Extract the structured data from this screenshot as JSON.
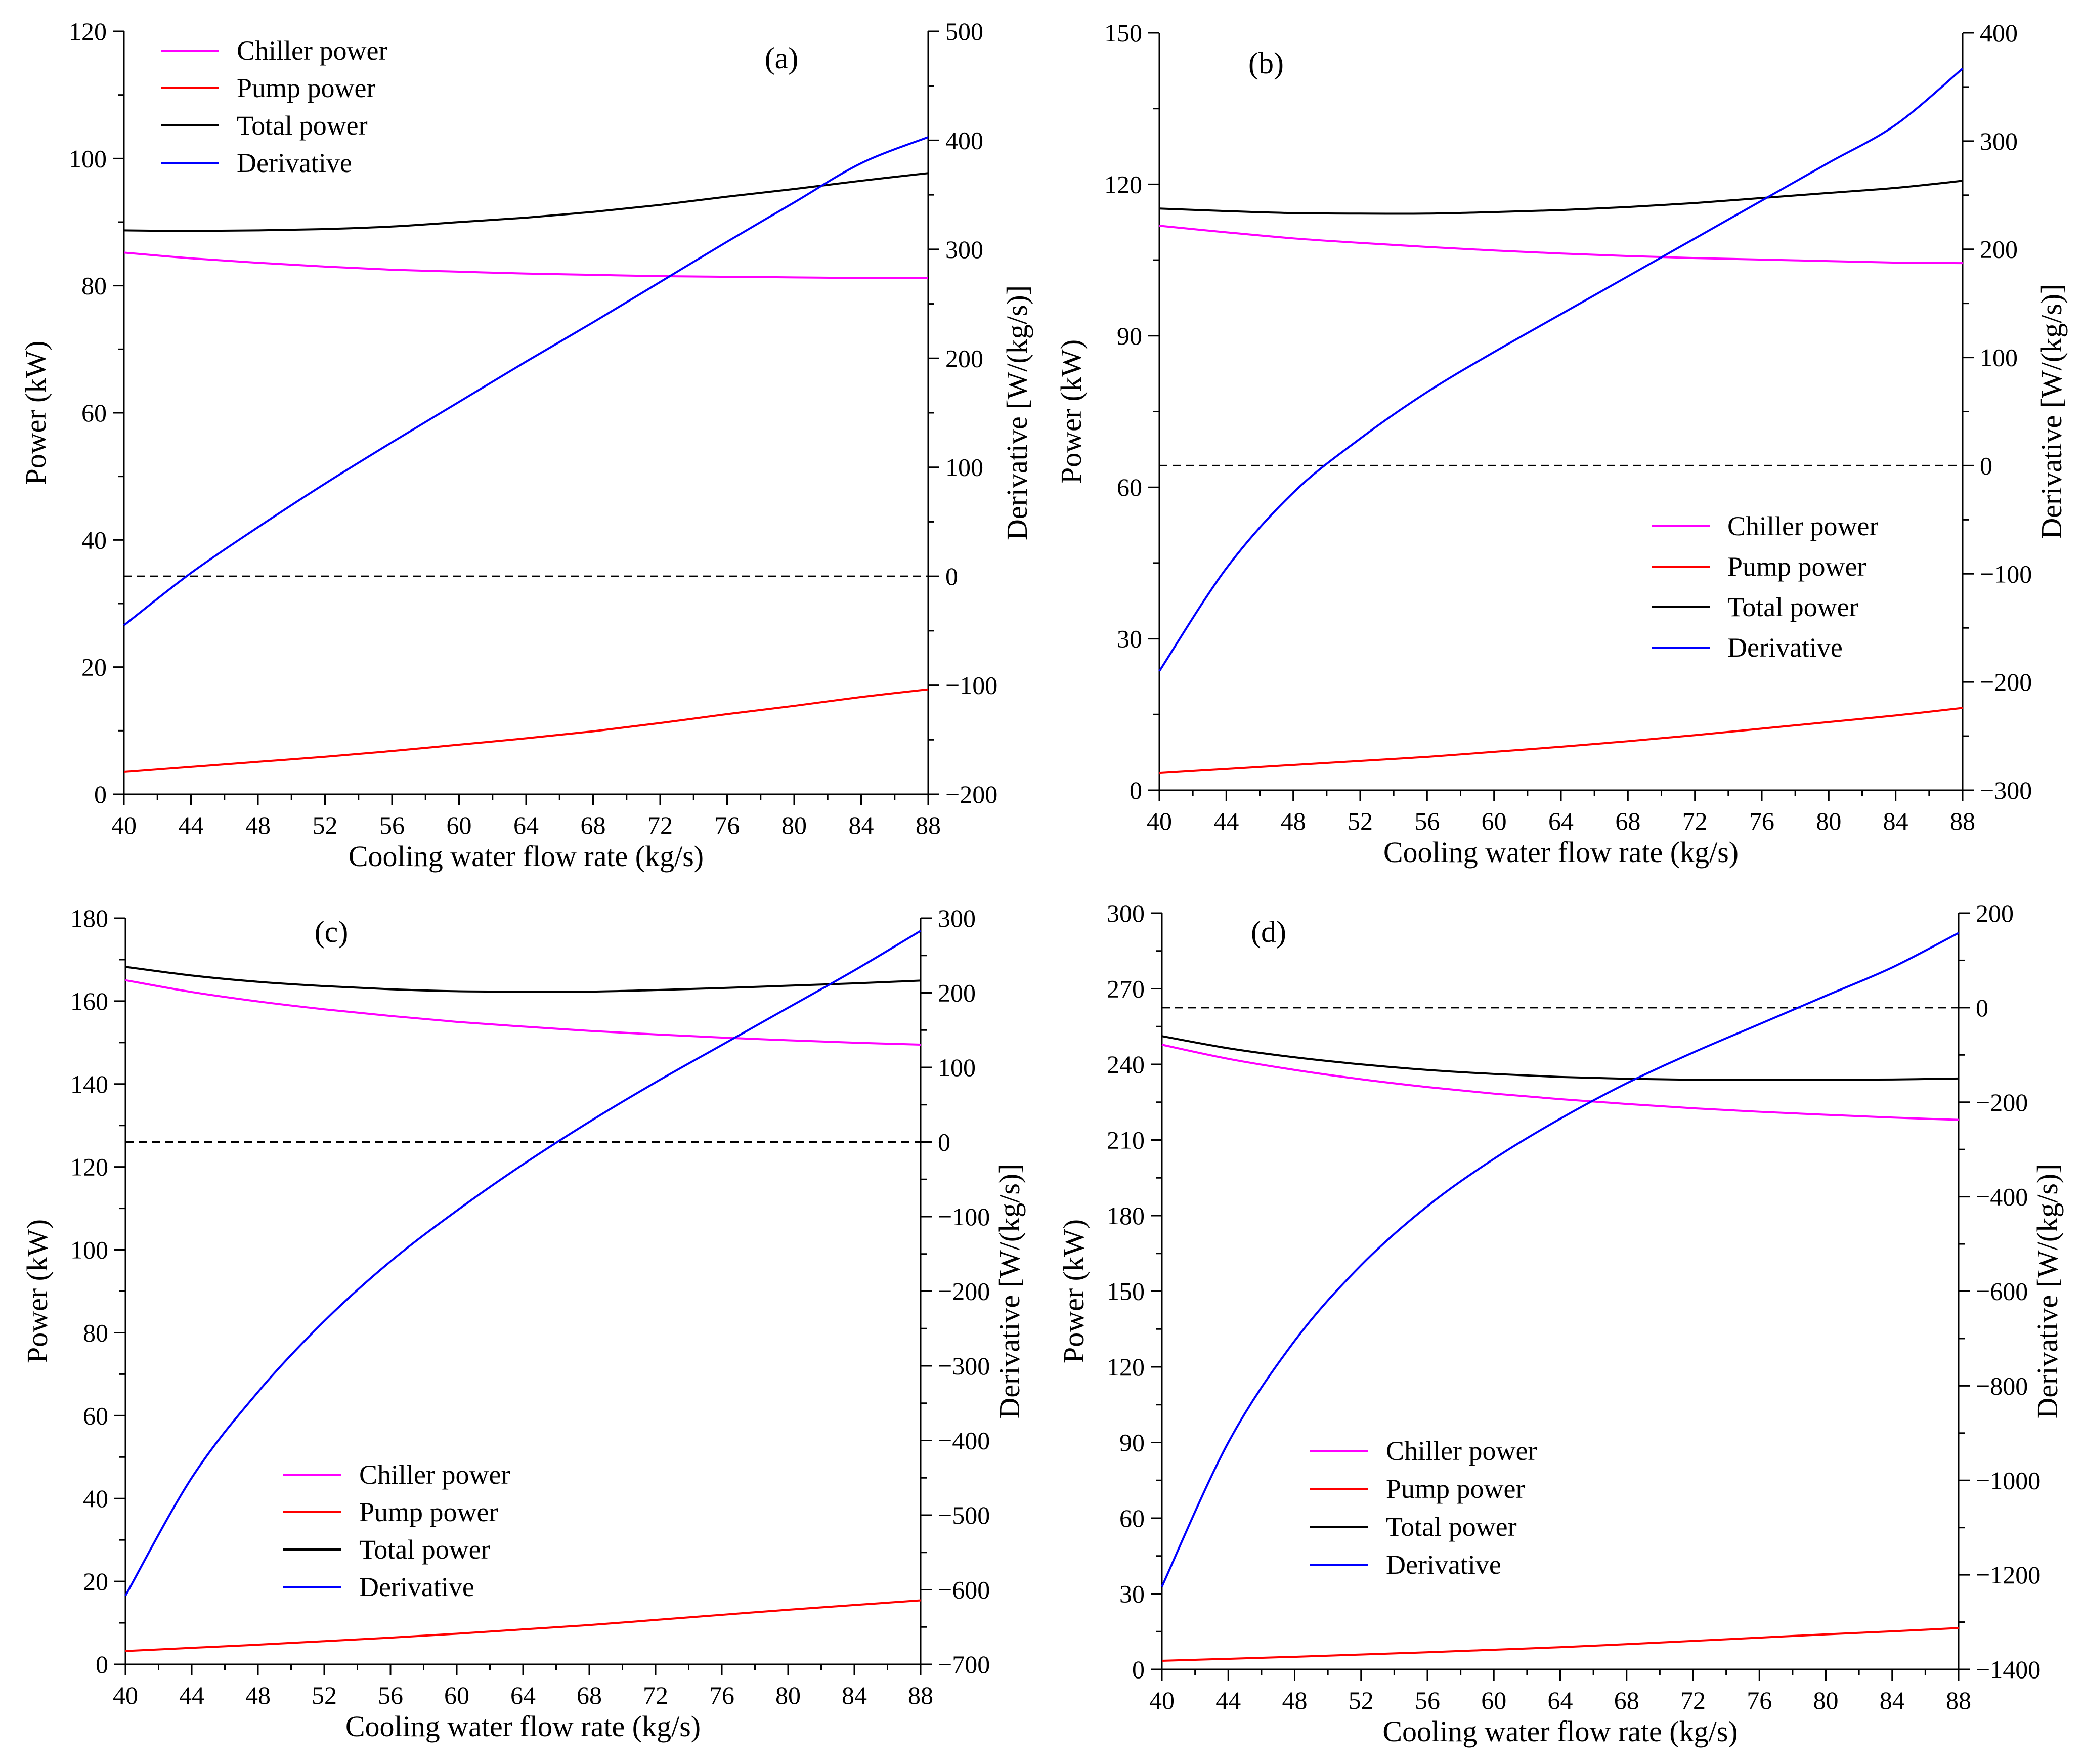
{
  "chart_data": [
    {
      "panel": "(a)",
      "type": "line",
      "xlabel": "Cooling water flow rate (kg/s)",
      "ylabel": "Power (kW)",
      "y2label": "Derivative [W/(kg/s)]",
      "xlim": [
        40,
        88
      ],
      "ylim": [
        0,
        120
      ],
      "y2lim": [
        -200,
        500
      ],
      "xticks": [
        "40",
        "44",
        "48",
        "52",
        "56",
        "60",
        "64",
        "68",
        "72",
        "76",
        "80",
        "84",
        "88"
      ],
      "yticks": [
        "0",
        "20",
        "40",
        "60",
        "80",
        "100",
        "120"
      ],
      "y2ticks": [
        "-200",
        "-100",
        "0",
        "100",
        "200",
        "300",
        "400",
        "500"
      ],
      "legend_position": "top-left",
      "x": [
        40,
        44,
        48,
        52,
        56,
        60,
        64,
        68,
        72,
        76,
        80,
        84,
        88
      ],
      "series": [
        {
          "name": "Chiller power",
          "axis": "left",
          "color": "#ff00ff",
          "values": [
            85.2,
            84.3,
            83.6,
            83.0,
            82.5,
            82.2,
            81.9,
            81.7,
            81.5,
            81.4,
            81.3,
            81.2,
            81.2
          ]
        },
        {
          "name": "Pump power",
          "axis": "left",
          "color": "#ff0000",
          "values": [
            3.5,
            4.3,
            5.1,
            5.9,
            6.8,
            7.8,
            8.8,
            9.9,
            11.2,
            12.6,
            13.9,
            15.3,
            16.5
          ]
        },
        {
          "name": "Total power",
          "axis": "left",
          "color": "#000000",
          "values": [
            88.7,
            88.6,
            88.7,
            88.9,
            89.3,
            90.0,
            90.7,
            91.6,
            92.7,
            94.0,
            95.2,
            96.5,
            97.7
          ]
        },
        {
          "name": "Derivative",
          "axis": "right",
          "color": "#0000ff",
          "values": [
            -45,
            3,
            45,
            85,
            123,
            160,
            197,
            233,
            270,
            307,
            343,
            379,
            403
          ]
        }
      ],
      "reference_line": {
        "axis": "right",
        "value": 0,
        "style": "dashed"
      }
    },
    {
      "panel": "(b)",
      "type": "line",
      "xlabel": "Cooling water flow rate (kg/s)",
      "ylabel": "Power (kW)",
      "y2label": "Derivative [W/(kg/s)]",
      "xlim": [
        40,
        88
      ],
      "ylim": [
        0,
        150
      ],
      "y2lim": [
        -300,
        400
      ],
      "xticks": [
        "40",
        "44",
        "48",
        "52",
        "56",
        "60",
        "64",
        "68",
        "72",
        "76",
        "80",
        "84",
        "88"
      ],
      "yticks": [
        "0",
        "30",
        "60",
        "90",
        "120",
        "150"
      ],
      "y2ticks": [
        "-300",
        "-200",
        "-100",
        "0",
        "100",
        "200",
        "300",
        "400"
      ],
      "legend_position": "center-right",
      "x": [
        40,
        44,
        48,
        52,
        56,
        60,
        64,
        68,
        72,
        76,
        80,
        84,
        88
      ],
      "series": [
        {
          "name": "Chiller power",
          "axis": "left",
          "color": "#ff00ff",
          "values": [
            111.8,
            110.5,
            109.3,
            108.4,
            107.6,
            106.9,
            106.3,
            105.8,
            105.4,
            105.1,
            104.8,
            104.5,
            104.4
          ]
        },
        {
          "name": "Pump power",
          "axis": "left",
          "color": "#ff0000",
          "values": [
            3.4,
            4.2,
            5.0,
            5.8,
            6.6,
            7.6,
            8.6,
            9.7,
            10.9,
            12.2,
            13.5,
            14.8,
            16.3
          ]
        },
        {
          "name": "Total power",
          "axis": "left",
          "color": "#000000",
          "values": [
            115.2,
            114.7,
            114.3,
            114.2,
            114.2,
            114.5,
            114.9,
            115.5,
            116.3,
            117.3,
            118.3,
            119.3,
            120.7
          ]
        },
        {
          "name": "Derivative",
          "axis": "right",
          "color": "#0000ff",
          "values": [
            -190,
            -95,
            -25,
            25,
            68,
            105,
            140,
            175,
            210,
            245,
            280,
            315,
            367
          ]
        }
      ],
      "reference_line": {
        "axis": "right",
        "value": 0,
        "style": "dashed"
      }
    },
    {
      "panel": "(c)",
      "type": "line",
      "xlabel": "Cooling water flow rate (kg/s)",
      "ylabel": "Power (kW)",
      "y2label": "Derivative [W/(kg/s)]",
      "xlim": [
        40,
        88
      ],
      "ylim": [
        0,
        190
      ],
      "y2lim": [
        -700,
        300
      ],
      "xticks": [
        "40",
        "44",
        "48",
        "52",
        "56",
        "60",
        "64",
        "68",
        "72",
        "76",
        "80",
        "84",
        "88"
      ],
      "yticks": [
        "0",
        "20",
        "40",
        "60",
        "80",
        "100",
        "120",
        "140",
        "160",
        "180"
      ],
      "y2ticks": [
        "-700",
        "-600",
        "-500",
        "-400",
        "-300",
        "-200",
        "-100",
        "0",
        "100",
        "200",
        "300"
      ],
      "legend_position": "bottom-left",
      "x": [
        40,
        44,
        48,
        52,
        56,
        60,
        64,
        68,
        72,
        76,
        80,
        84,
        88
      ],
      "series": [
        {
          "name": "Chiller power",
          "axis": "left",
          "color": "#ff00ff",
          "values": [
            174.2,
            171.2,
            168.8,
            166.8,
            165.1,
            163.6,
            162.4,
            161.3,
            160.4,
            159.6,
            158.9,
            158.3,
            157.8
          ]
        },
        {
          "name": "Pump power",
          "axis": "left",
          "color": "#ff0000",
          "values": [
            3.4,
            4.2,
            5.0,
            5.9,
            6.8,
            7.8,
            8.9,
            10.0,
            11.3,
            12.6,
            13.9,
            15.1,
            16.3
          ]
        },
        {
          "name": "Total power",
          "axis": "left",
          "color": "#000000",
          "values": [
            177.6,
            175.4,
            173.8,
            172.7,
            171.9,
            171.4,
            171.3,
            171.3,
            171.7,
            172.2,
            172.8,
            173.4,
            174.1
          ]
        },
        {
          "name": "Derivative",
          "axis": "right",
          "color": "#0000ff",
          "values": [
            -608,
            -450,
            -335,
            -240,
            -160,
            -92,
            -30,
            27,
            80,
            130,
            180,
            230,
            283
          ]
        }
      ],
      "reference_line": {
        "axis": "right",
        "value": 0,
        "style": "dashed"
      }
    },
    {
      "panel": "(d)",
      "type": "line",
      "xlabel": "Cooling water flow rate (kg/s)",
      "ylabel": "Power (kW)",
      "y2label": "Derivative [W/(kg/s)]",
      "xlim": [
        40,
        88
      ],
      "ylim": [
        0,
        300
      ],
      "y2lim": [
        -1400,
        200
      ],
      "xticks": [
        "40",
        "44",
        "48",
        "52",
        "56",
        "60",
        "64",
        "68",
        "72",
        "76",
        "80",
        "84",
        "88"
      ],
      "yticks": [
        "0",
        "30",
        "60",
        "90",
        "120",
        "150",
        "180",
        "210",
        "240",
        "270",
        "300"
      ],
      "y2ticks": [
        "-1400",
        "-1200",
        "-1000",
        "-800",
        "-600",
        "-400",
        "-200",
        "0",
        "200"
      ],
      "legend_position": "bottom-left",
      "x": [
        40,
        44,
        48,
        52,
        56,
        60,
        64,
        68,
        72,
        76,
        80,
        84,
        88
      ],
      "series": [
        {
          "name": "Chiller power",
          "axis": "left",
          "color": "#ff00ff",
          "values": [
            247.8,
            242.2,
            237.8,
            234.1,
            231.0,
            228.4,
            226.2,
            224.3,
            222.6,
            221.2,
            220.0,
            218.9,
            218.0
          ]
        },
        {
          "name": "Pump power",
          "axis": "left",
          "color": "#ff0000",
          "values": [
            3.4,
            4.2,
            5.0,
            5.9,
            6.8,
            7.8,
            8.8,
            10.0,
            11.3,
            12.6,
            13.9,
            15.1,
            16.4
          ]
        },
        {
          "name": "Total power",
          "axis": "left",
          "color": "#000000",
          "values": [
            251.2,
            246.4,
            242.8,
            240.0,
            237.8,
            236.2,
            235.0,
            234.3,
            233.9,
            233.8,
            233.9,
            234.0,
            234.4
          ]
        },
        {
          "name": "Derivative",
          "axis": "right",
          "color": "#0000ff",
          "values": [
            -1225,
            -920,
            -705,
            -545,
            -420,
            -320,
            -235,
            -160,
            -95,
            -35,
            25,
            85,
            158
          ]
        }
      ],
      "reference_line": {
        "axis": "right",
        "value": 0,
        "style": "dashed"
      }
    }
  ]
}
